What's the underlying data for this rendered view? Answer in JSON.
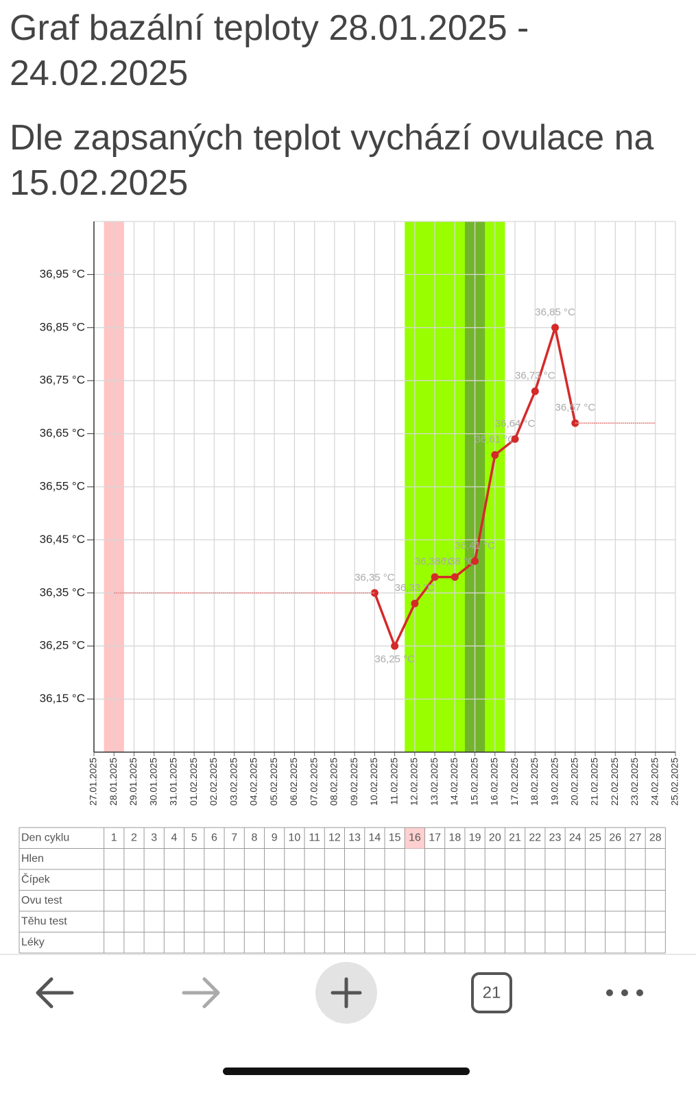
{
  "header": {
    "title": "Graf bazální teploty 28.01.2025 - 24.02.2025",
    "subtitle": "Dle zapsaných teplot vychází ovulace na 15.02.2025"
  },
  "chart_data": {
    "type": "line",
    "categories": [
      "27.01.2025",
      "28.01.2025",
      "29.01.2025",
      "30.01.2025",
      "31.01.2025",
      "01.02.2025",
      "02.02.2025",
      "03.02.2025",
      "04.02.2025",
      "05.02.2025",
      "06.02.2025",
      "07.02.2025",
      "08.02.2025",
      "09.02.2025",
      "10.02.2025",
      "11.02.2025",
      "12.02.2025",
      "13.02.2025",
      "14.02.2025",
      "15.02.2025",
      "16.02.2025",
      "17.02.2025",
      "18.02.2025",
      "19.02.2025",
      "20.02.2025",
      "21.02.2025",
      "22.02.2025",
      "23.02.2025",
      "24.02.2025",
      "25.02.2025"
    ],
    "series": [
      {
        "color": "#d42a2a",
        "values": [
          null,
          null,
          null,
          null,
          null,
          null,
          null,
          null,
          null,
          null,
          null,
          null,
          null,
          null,
          36.35,
          36.25,
          36.33,
          36.38,
          36.38,
          36.41,
          36.61,
          36.64,
          36.73,
          36.85,
          36.67,
          null,
          null,
          null,
          null,
          null
        ],
        "value_labels": [
          null,
          null,
          null,
          null,
          null,
          null,
          null,
          null,
          null,
          null,
          null,
          null,
          null,
          null,
          "36,35 °C",
          "36,25 °C",
          "36,33 °C",
          "36,38 °C",
          "36,38 °C",
          "36,41 °C",
          "36,61 °C",
          "36,64 °C",
          "36,73 °C",
          "36,85 °C",
          "36,67 °C",
          null,
          null,
          null,
          null,
          null
        ]
      },
      {
        "color": "#e39090",
        "values": [
          null,
          36.35,
          36.35,
          36.35,
          36.35,
          36.35,
          36.35,
          36.35,
          36.35,
          36.35,
          36.35,
          36.35,
          36.35,
          36.35,
          36.35,
          null,
          null,
          null,
          null,
          null,
          null,
          null,
          null,
          null,
          36.67,
          36.67,
          36.67,
          36.67,
          36.67,
          null
        ]
      }
    ],
    "ylim": [
      36.05,
      37.05
    ],
    "yticks": [
      {
        "value": 36.95,
        "label": "36,95 °C"
      },
      {
        "value": 36.85,
        "label": "36,85 °C"
      },
      {
        "value": 36.75,
        "label": "36,75 °C"
      },
      {
        "value": 36.65,
        "label": "36,65 °C"
      },
      {
        "value": 36.55,
        "label": "36,55 °C"
      },
      {
        "value": 36.45,
        "label": "36,45 °C"
      },
      {
        "value": 36.35,
        "label": "36,35 °C"
      },
      {
        "value": 36.25,
        "label": "36,25 °C"
      },
      {
        "value": 36.15,
        "label": "36,15 °C"
      }
    ],
    "grid": true,
    "bands": [
      {
        "from": "28.01.2025",
        "to": "28.01.2025",
        "color": "#ffc4c4"
      },
      {
        "from": "12.02.2025",
        "to": "16.02.2025",
        "color": "#99ff00"
      },
      {
        "from": "15.02.2025",
        "to": "15.02.2025",
        "color": "#72b52a"
      }
    ]
  },
  "cycle_table": {
    "highlighted_day": 16,
    "rows": [
      {
        "label": "Den cyklu",
        "cells": [
          1,
          2,
          3,
          4,
          5,
          6,
          7,
          8,
          9,
          10,
          11,
          12,
          13,
          14,
          15,
          16,
          17,
          18,
          19,
          20,
          21,
          22,
          23,
          24,
          25,
          26,
          27,
          28
        ]
      },
      {
        "label": "Hlen"
      },
      {
        "label": "Čípek"
      },
      {
        "label": "Ovu test"
      },
      {
        "label": "Těhu test"
      },
      {
        "label": "Léky"
      }
    ]
  },
  "toolbar": {
    "tab_count": "21"
  }
}
